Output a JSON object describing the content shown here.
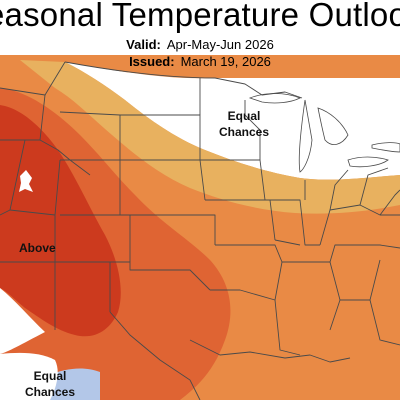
{
  "header": {
    "title": "easonal Temperature Outloo",
    "valid_label": "Valid:",
    "valid_value": "Apr-May-Jun 2026",
    "issued_label": "Issued:",
    "issued_value": "March 19, 2026"
  },
  "map": {
    "labels": {
      "equal_chances_north": [
        "Equal",
        "Chances"
      ],
      "above": "Above",
      "equal_chances_south": [
        "Equal",
        "Chances"
      ]
    },
    "colors": {
      "equal_chances": "#ffffff",
      "above_33_40": "#e8b15f",
      "above_40_50": "#e98a45",
      "above_50_60": "#df6433",
      "above_60_70": "#cc3a1e",
      "below": "#b3c7e8",
      "border": "#4a4a4a",
      "lakes": "#ffffff"
    }
  }
}
